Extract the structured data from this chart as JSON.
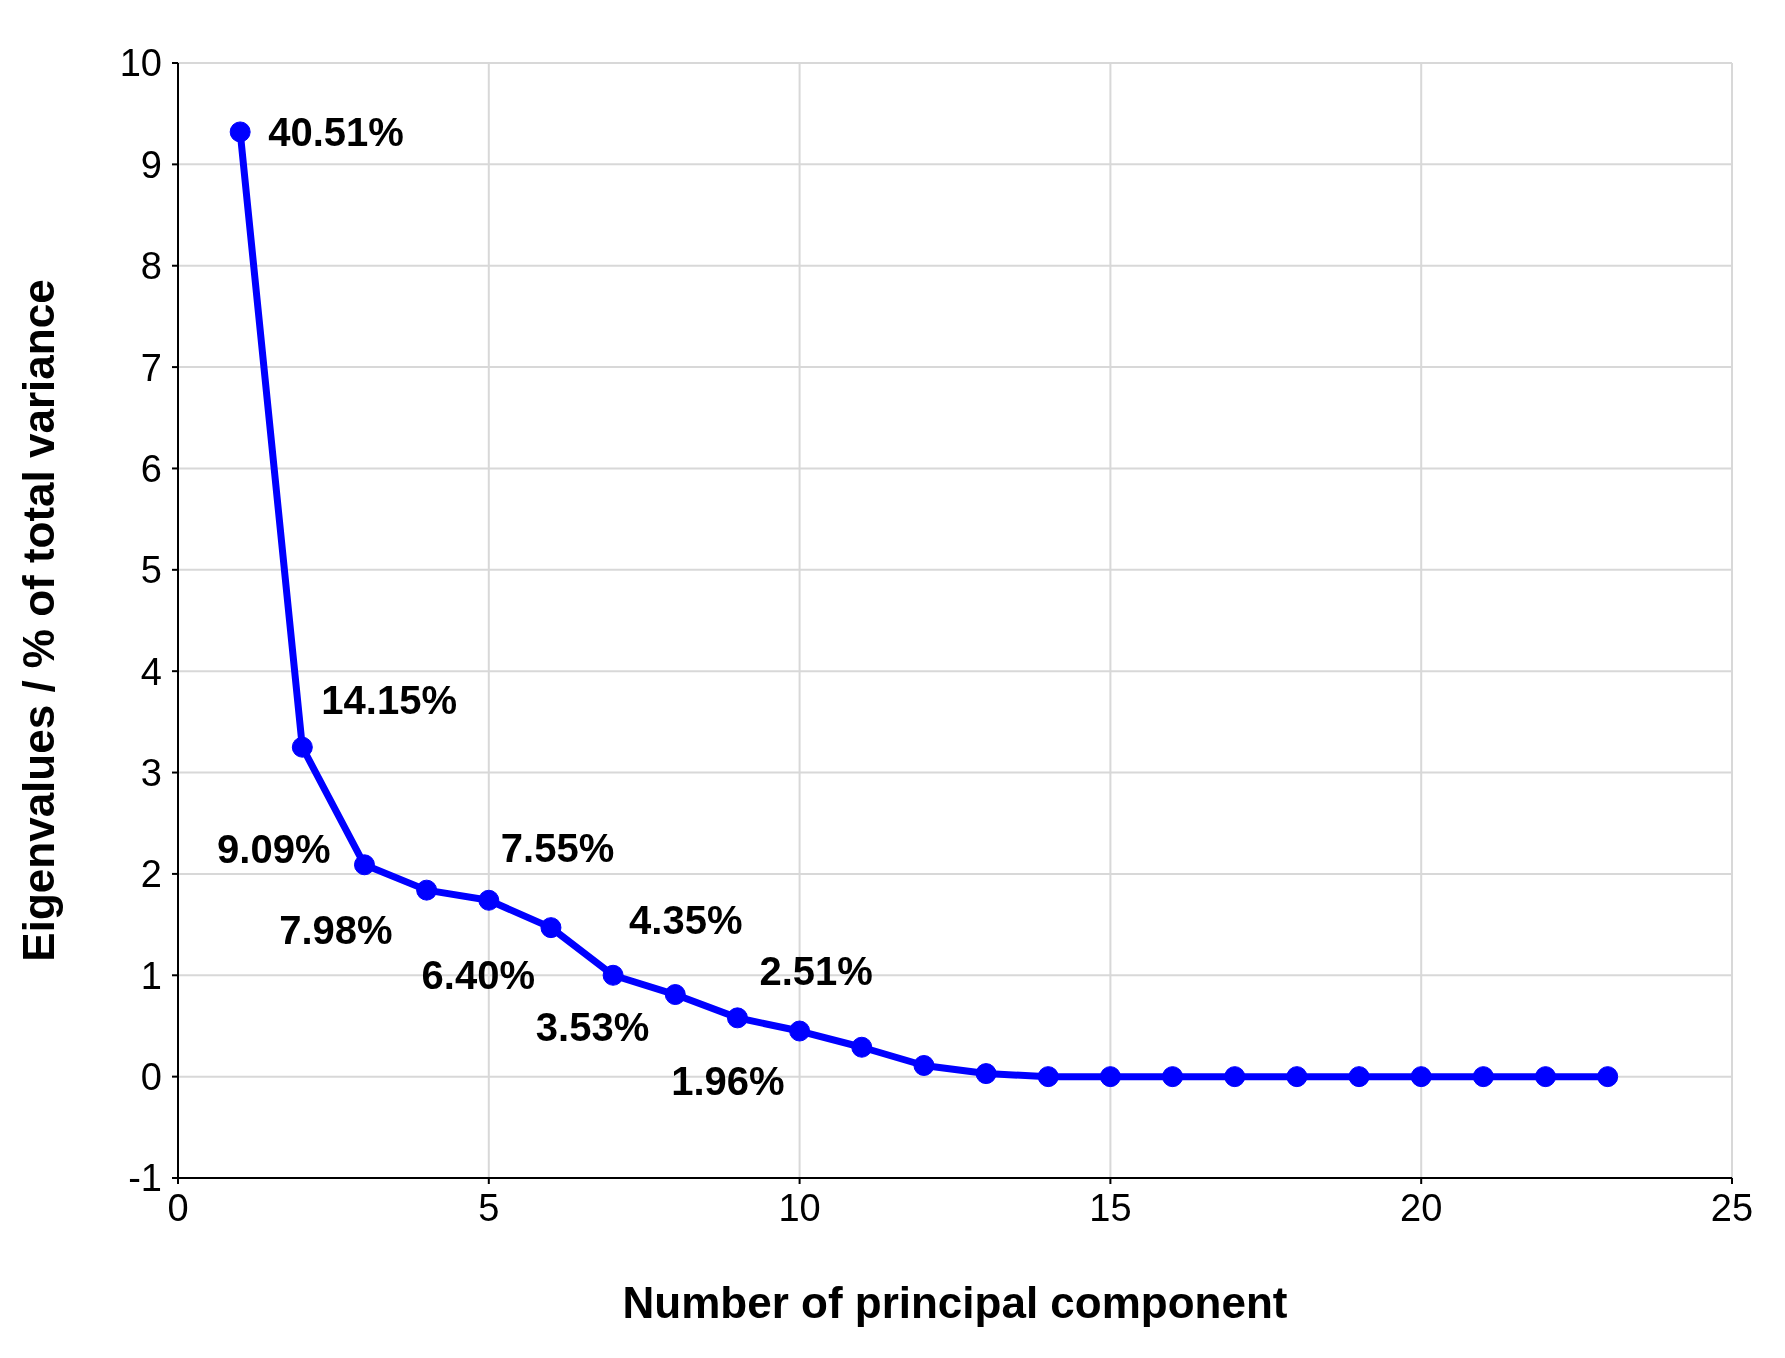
{
  "chart_data": {
    "type": "line",
    "xlabel": "Number of principal component",
    "ylabel": "Eigenvalues / % of total variance",
    "x": [
      1,
      2,
      3,
      4,
      5,
      6,
      7,
      8,
      9,
      10,
      11,
      12,
      13,
      14,
      15,
      16,
      17,
      18,
      19,
      20,
      21,
      22,
      23
    ],
    "series": [
      {
        "color": "#0000ff",
        "values": [
          9.32,
          3.25,
          2.09,
          1.84,
          1.74,
          1.47,
          1.0,
          0.81,
          0.58,
          0.45,
          0.29,
          0.11,
          0.03,
          0,
          0,
          0,
          0,
          0,
          0,
          0,
          0,
          0,
          0
        ]
      }
    ],
    "xlim": [
      0,
      25
    ],
    "xticks": [
      0,
      5,
      10,
      15,
      20,
      25
    ],
    "ylim": [
      -1,
      10
    ],
    "yticks": [
      -1,
      0,
      1,
      2,
      3,
      4,
      5,
      6,
      7,
      8,
      9,
      10
    ],
    "grid": true,
    "legend": false,
    "marker": "circle",
    "line_style": "solid",
    "annotations": [
      {
        "text": "40.51%",
        "x": 1,
        "y": 9.32
      },
      {
        "text": "14.15%",
        "x": 2,
        "y": 3.25
      },
      {
        "text": "9.09%",
        "x": 3,
        "y": 2.09
      },
      {
        "text": "7.98%",
        "x": 4,
        "y": 1.84
      },
      {
        "text": "7.55%",
        "x": 5,
        "y": 1.74
      },
      {
        "text": "6.40%",
        "x": 6,
        "y": 1.47
      },
      {
        "text": "4.35%",
        "x": 7,
        "y": 1.0
      },
      {
        "text": "3.53%",
        "x": 8,
        "y": 0.81
      },
      {
        "text": "2.51%",
        "x": 9,
        "y": 0.58
      },
      {
        "text": "1.96%",
        "x": 10,
        "y": 0.45
      }
    ]
  }
}
